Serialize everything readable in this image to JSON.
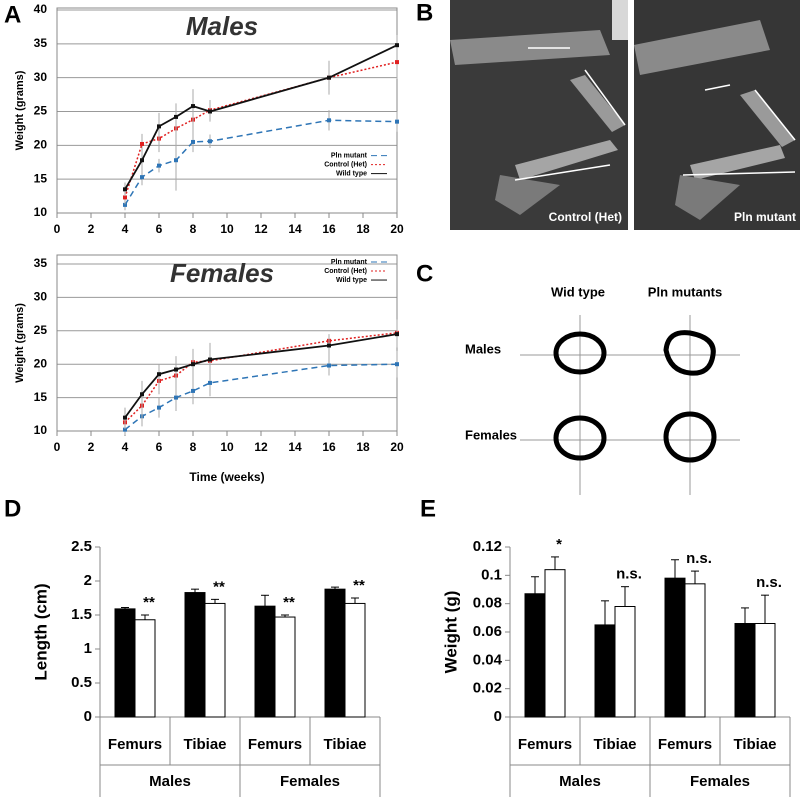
{
  "panel_labels": [
    "A",
    "B",
    "C",
    "D",
    "E"
  ],
  "xray": {
    "left_label": "Control (Het)",
    "right_label": "Pln mutant"
  },
  "cross_sections": {
    "columns": [
      "Wid type",
      "Pln mutants"
    ],
    "rows": [
      "Males",
      "Females"
    ]
  },
  "chart_data": [
    {
      "type": "line",
      "title": "Males",
      "y_label": "Weight (grams)",
      "x": [
        4,
        5,
        6,
        7,
        8,
        9,
        16,
        20
      ],
      "xlim": [
        0,
        20
      ],
      "xticks": [
        0,
        2,
        4,
        6,
        8,
        10,
        12,
        14,
        16,
        18,
        20
      ],
      "ylim": [
        10,
        40
      ],
      "yticks": [
        10,
        15,
        20,
        25,
        30,
        35,
        40
      ],
      "grid": true,
      "legend": "right",
      "series": [
        {
          "name": "Pln mutant",
          "color": "#2e75b6",
          "style": "dashed",
          "values": [
            11.2,
            15.3,
            17,
            17.8,
            20.5,
            20.6,
            23.7,
            23.5
          ],
          "errors": [
            0.8,
            1.2,
            1,
            4.5,
            1.5,
            1,
            1.5,
            1.5
          ]
        },
        {
          "name": "Control (Het)",
          "color": "#e02020",
          "style": "dotted",
          "values": [
            12.3,
            20.2,
            21,
            22.5,
            23.8,
            25.2,
            30,
            32.3
          ],
          "errors": [
            1,
            1.5,
            2,
            2.5,
            2,
            1.5,
            2,
            2.5
          ]
        },
        {
          "name": "Wild type",
          "color": "#111111",
          "style": "solid",
          "values": [
            13.5,
            17.8,
            22.8,
            24.2,
            25.8,
            25,
            30,
            34.8
          ],
          "errors": [
            1,
            1.5,
            2,
            2,
            2.5,
            1.5,
            2.5,
            1.5
          ]
        }
      ]
    },
    {
      "type": "line",
      "title": "Females",
      "y_label": "Weight (grams)",
      "x_label": "Time (weeks)",
      "x": [
        4,
        5,
        6,
        7,
        8,
        9,
        16,
        20
      ],
      "xlim": [
        0,
        20
      ],
      "xticks": [
        0,
        2,
        4,
        6,
        8,
        10,
        12,
        14,
        16,
        18,
        20
      ],
      "ylim": [
        10,
        35
      ],
      "yticks": [
        10,
        15,
        20,
        25,
        30,
        35
      ],
      "grid": true,
      "legend": "right",
      "series": [
        {
          "name": "Pln mutant",
          "color": "#2e75b6",
          "style": "dashed",
          "values": [
            10.2,
            12.2,
            13.5,
            15,
            16,
            17.2,
            19.8,
            20
          ],
          "errors": [
            0.8,
            1.5,
            1.5,
            2,
            2,
            2,
            1.5,
            2
          ]
        },
        {
          "name": "Control (Het)",
          "color": "#e02020",
          "style": "dotted",
          "values": [
            11.3,
            13.8,
            17.5,
            18.3,
            20.3,
            20.5,
            23.5,
            24.7
          ],
          "errors": [
            1,
            2,
            2,
            2,
            2,
            2.5,
            1,
            2
          ]
        },
        {
          "name": "Wild type",
          "color": "#111111",
          "style": "solid",
          "values": [
            12,
            15.5,
            18.5,
            19.2,
            20,
            20.7,
            22.8,
            24.5
          ],
          "errors": [
            1.5,
            2,
            1.5,
            2,
            2,
            2.5,
            1.5,
            2
          ]
        }
      ]
    },
    {
      "type": "bar",
      "y_label": "Length (cm)",
      "categories": [
        "Femurs",
        "Tibiae",
        "Femurs",
        "Tibiae"
      ],
      "groups": [
        "Males",
        "Females"
      ],
      "ylim": [
        0,
        2.5
      ],
      "yticks": [
        0,
        0.5,
        1,
        1.5,
        2,
        2.5
      ],
      "series": [
        {
          "color": "#000000",
          "values": [
            1.59,
            1.83,
            1.63,
            1.88
          ],
          "errors": [
            0.02,
            0.05,
            0.16,
            0.03
          ]
        },
        {
          "color": "#ffffff",
          "values": [
            1.43,
            1.67,
            1.47,
            1.67
          ],
          "errors": [
            0.07,
            0.06,
            0.03,
            0.08
          ],
          "annotations": [
            "**",
            "**",
            "**",
            "**"
          ]
        }
      ]
    },
    {
      "type": "bar",
      "y_label": "Weight (g)",
      "categories": [
        "Femurs",
        "Tibiae",
        "Femurs",
        "Tibiae"
      ],
      "groups": [
        "Males",
        "Females"
      ],
      "ylim": [
        0,
        0.12
      ],
      "yticks": [
        0,
        0.02,
        0.04,
        0.06,
        0.08,
        0.1,
        0.12
      ],
      "series": [
        {
          "color": "#000000",
          "values": [
            0.087,
            0.065,
            0.098,
            0.066
          ],
          "errors": [
            0.012,
            0.017,
            0.013,
            0.011
          ]
        },
        {
          "color": "#ffffff",
          "values": [
            0.104,
            0.078,
            0.094,
            0.066
          ],
          "errors": [
            0.009,
            0.014,
            0.009,
            0.02
          ],
          "annotations": [
            "*",
            "n.s.",
            "n.s.",
            "n.s."
          ]
        }
      ]
    }
  ]
}
